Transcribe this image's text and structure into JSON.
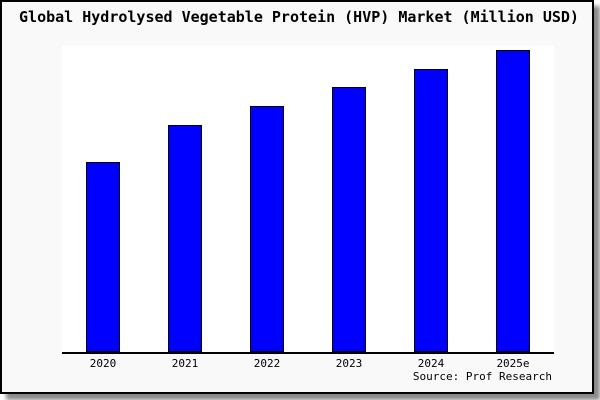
{
  "chart_data": {
    "type": "bar",
    "title": "Global Hydrolysed Vegetable Protein (HVP) Market (Million USD)",
    "categories": [
      "2020",
      "2021",
      "2022",
      "2023",
      "2024",
      "2025e"
    ],
    "values": [
      62.7,
      75.0,
      81.3,
      87.5,
      93.7,
      100.0
    ],
    "values_note": "relative bar heights in % of tallest bar; chart shows no y-axis scale or value labels",
    "xlabel": "",
    "ylabel": "",
    "ylim": [
      0,
      102
    ],
    "grid": false,
    "legend": false,
    "bar_color": "#0000FF",
    "bar_border_color": "#000000",
    "source": "Source: Prof Research"
  },
  "frame": {
    "background": "#f9f9f9",
    "plot_background": "#ffffff",
    "border_color": "#000000",
    "shadow_color": "#8a8a8a",
    "text_color": "#000000"
  }
}
